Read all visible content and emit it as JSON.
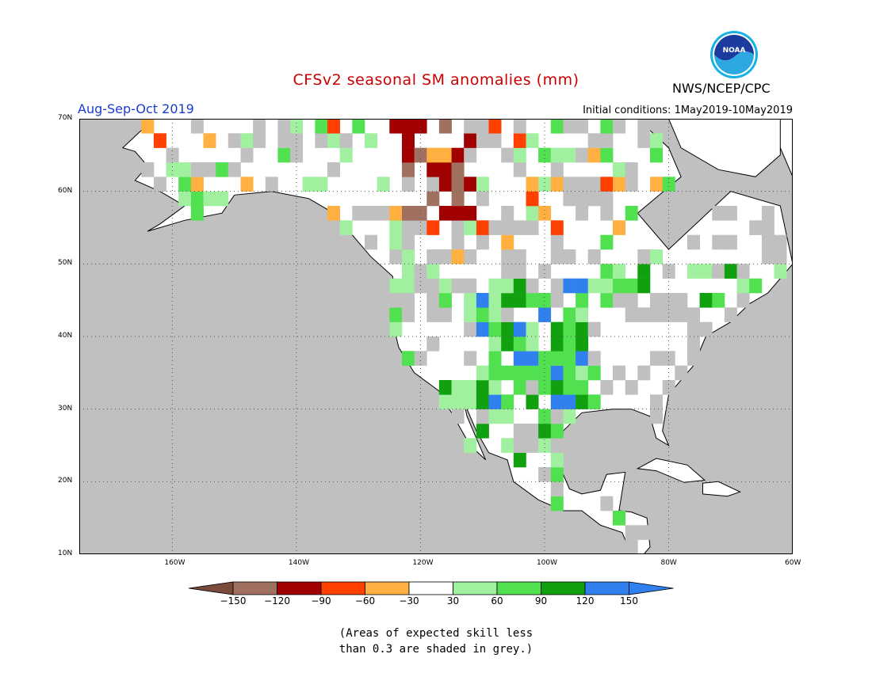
{
  "title": "CFSv2 seasonal SM anomalies (mm)",
  "season": "Aug-Sep-Oct 2019",
  "initial_conditions": "Initial conditions: 1May2019-10May2019",
  "agency": "NWS/NCEP/CPC",
  "logo": {
    "text": "NOAA",
    "icon": "noaa-logo-icon"
  },
  "map": {
    "lon_range": [
      -175,
      -60
    ],
    "lat_range": [
      10,
      70
    ],
    "lon_ticks": [
      {
        "v": -160,
        "label": "160W"
      },
      {
        "v": -140,
        "label": "140W"
      },
      {
        "v": -120,
        "label": "120W"
      },
      {
        "v": -100,
        "label": "100W"
      },
      {
        "v": -80,
        "label": "80W"
      },
      {
        "v": -60,
        "label": "60W"
      }
    ],
    "lat_ticks": [
      {
        "v": 70,
        "label": "70N"
      },
      {
        "v": 60,
        "label": "60N"
      },
      {
        "v": 50,
        "label": "50N"
      },
      {
        "v": 40,
        "label": "40N"
      },
      {
        "v": 30,
        "label": "30N"
      },
      {
        "v": 20,
        "label": "20N"
      },
      {
        "v": 10,
        "label": "10N"
      }
    ],
    "land_color": "#ffffff",
    "ocean_color": "#c0c0c0",
    "grid_lines": true
  },
  "colorbar": {
    "colors": [
      "#7a4a3a",
      "#a07060",
      "#a00000",
      "#ff4000",
      "#ffb040",
      "#ffffff",
      "#a0f0a0",
      "#50e050",
      "#10a010",
      "#3080f0",
      "#3080f0"
    ],
    "labels": [
      "-150",
      "-120",
      "-90",
      "-60",
      "-30",
      "30",
      "60",
      "90",
      "120",
      "150"
    ]
  },
  "note": [
    "(Areas of expected skill less",
    "than 0.3 are shaded in grey.)"
  ],
  "colors": {
    "title": "#cc0000",
    "season": "#1a3ccc"
  }
}
